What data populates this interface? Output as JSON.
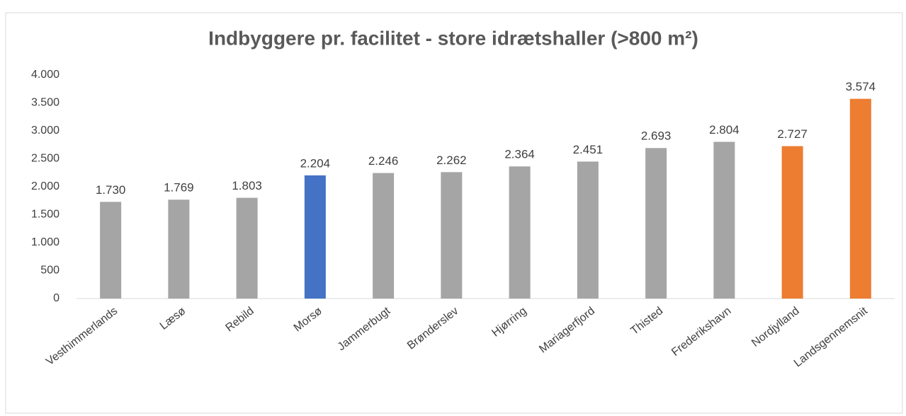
{
  "chart_data": {
    "type": "bar",
    "title": "Indbyggere pr. facilitet - store idrætshaller (>800 m²)",
    "categories": [
      "Vesthimmerlands",
      "Læsø",
      "Rebild",
      "Morsø",
      "Jammerbugt",
      "Brønderslev",
      "Hjørring",
      "Mariagerfjord",
      "Thisted",
      "Frederikshavn",
      "Nordjylland",
      "Landsgennemsnit"
    ],
    "values": [
      1730,
      1769,
      1803,
      2204,
      2246,
      2262,
      2364,
      2451,
      2693,
      2804,
      2727,
      3574
    ],
    "value_labels": [
      "1.730",
      "1.769",
      "1.803",
      "2.204",
      "2.246",
      "2.262",
      "2.364",
      "2.451",
      "2.693",
      "2.804",
      "2.727",
      "3.574"
    ],
    "colors": [
      "#a5a5a5",
      "#a5a5a5",
      "#a5a5a5",
      "#4472c4",
      "#a5a5a5",
      "#a5a5a5",
      "#a5a5a5",
      "#a5a5a5",
      "#a5a5a5",
      "#a5a5a5",
      "#ed7d31",
      "#ed7d31"
    ],
    "ylim": [
      0,
      4000
    ],
    "yticks": [
      0,
      500,
      {
        "value": 1000,
        "label": "1.000"
      },
      {
        "value": 1500,
        "label": "1.500"
      },
      {
        "value": 2000,
        "label": "2.000"
      },
      {
        "value": 2500,
        "label": "2.500"
      },
      {
        "value": 3000,
        "label": "3.000"
      },
      {
        "value": 3500,
        "label": "3.500"
      },
      {
        "value": 4000,
        "label": "4.000"
      }
    ],
    "grid": false
  }
}
